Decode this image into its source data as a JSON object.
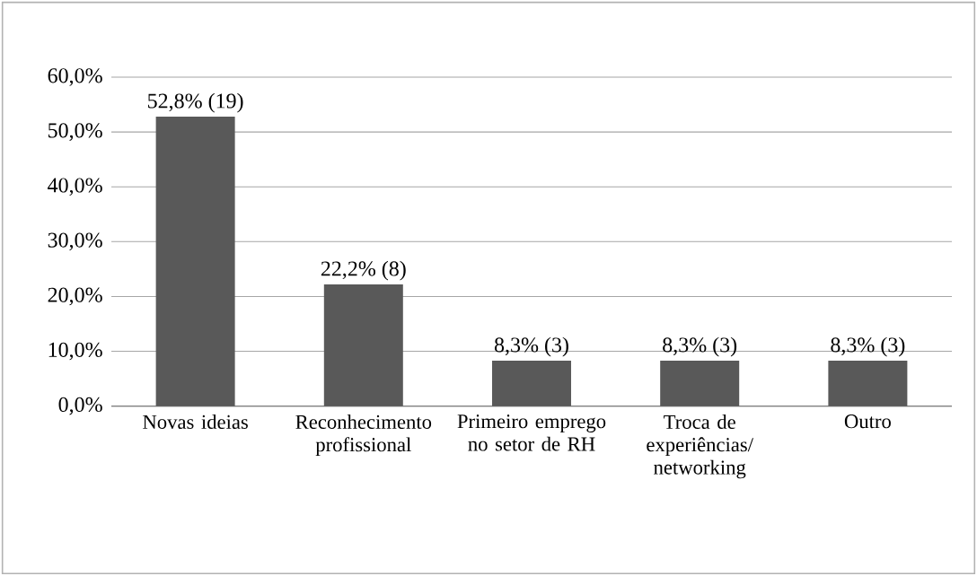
{
  "chart_data": {
    "type": "bar",
    "categories": [
      "Novas ideias",
      "Reconhecimento profissional",
      "Primeiro emprego no setor de RH",
      "Troca de experiências/ networking",
      "Outro"
    ],
    "values": [
      52.8,
      22.2,
      8.3,
      8.3,
      8.3
    ],
    "value_labels": [
      "52,8% (19)",
      "22,2% (8)",
      "8,3% (3)",
      "8,3% (3)",
      "8,3% (3)"
    ],
    "color": "#595959",
    "ylim": [
      0,
      60
    ],
    "yticks": [
      {
        "value": 0,
        "label": "0,0%"
      },
      {
        "value": 10,
        "label": "10,0%"
      },
      {
        "value": 20,
        "label": "20,0%"
      },
      {
        "value": 30,
        "label": "30,0%"
      },
      {
        "value": 40,
        "label": "40,0%"
      },
      {
        "value": 50,
        "label": "50,0%"
      },
      {
        "value": 60,
        "label": "60,0%"
      }
    ],
    "grid": "y"
  }
}
